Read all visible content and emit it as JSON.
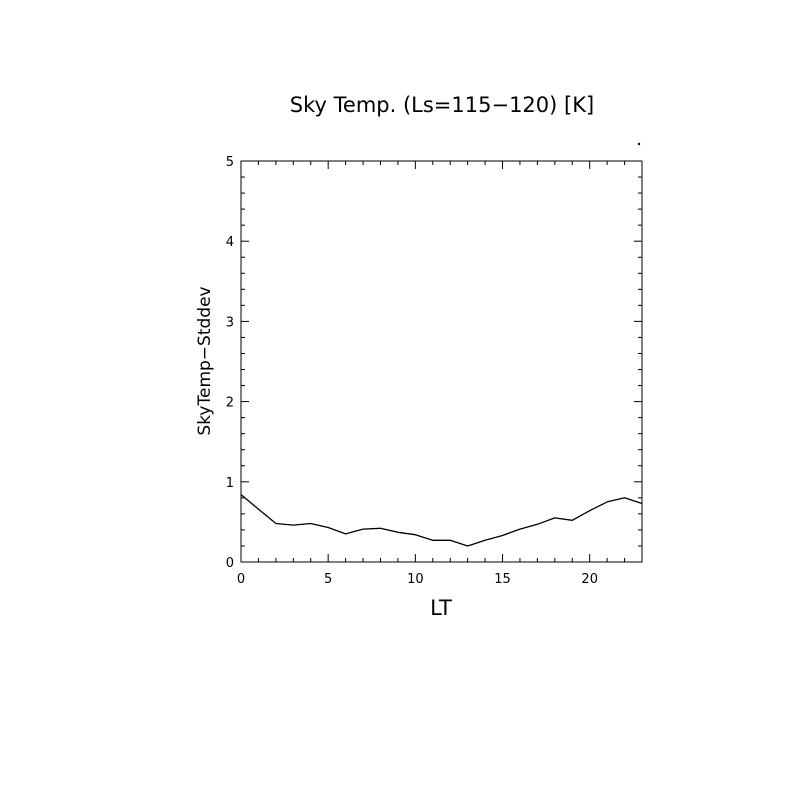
{
  "chart_data": {
    "type": "line",
    "title": "Sky Temp. (Ls=115−120) [K]",
    "xlabel": "LT",
    "ylabel": "SkyTemp−Stddev",
    "xlim": [
      0,
      23
    ],
    "ylim": [
      0,
      5
    ],
    "x_major_ticks": [
      0,
      5,
      10,
      15,
      20
    ],
    "y_major_ticks": [
      0,
      1,
      2,
      3,
      4,
      5
    ],
    "x_tick_labels": [
      "0",
      "5",
      "10",
      "15",
      "20"
    ],
    "y_tick_labels": [
      "0",
      "1",
      "2",
      "3",
      "4",
      "5"
    ],
    "grid": false,
    "series": [
      {
        "color": "#000000",
        "x": [
          0,
          1,
          2,
          3,
          4,
          5,
          6,
          7,
          8,
          9,
          10,
          11,
          12,
          13,
          14,
          15,
          16,
          17,
          18,
          19,
          20,
          21,
          22,
          23
        ],
        "y": [
          0.84,
          0.66,
          0.48,
          0.46,
          0.48,
          0.43,
          0.35,
          0.41,
          0.42,
          0.37,
          0.34,
          0.27,
          0.27,
          0.2,
          0.27,
          0.33,
          0.41,
          0.47,
          0.55,
          0.52,
          0.64,
          0.75,
          0.8,
          0.73
        ]
      }
    ]
  }
}
